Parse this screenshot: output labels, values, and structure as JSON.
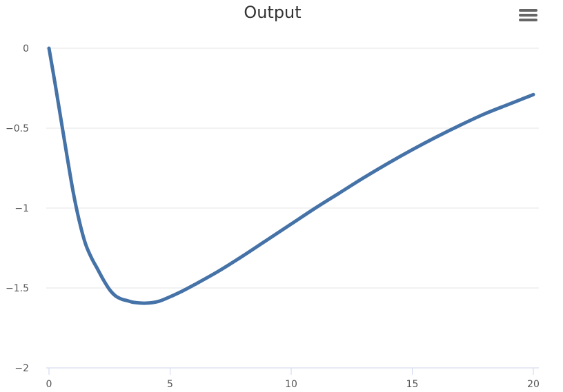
{
  "colors": {
    "series": "#4572a7",
    "menu_icon": "#666666"
  },
  "menu": {
    "icon": "hamburger-menu-icon"
  },
  "chart_data": {
    "type": "line",
    "title": "Output",
    "xlabel": "",
    "ylabel": "",
    "xlim": [
      0,
      20
    ],
    "ylim": [
      -2,
      0
    ],
    "x_ticks": [
      0,
      5,
      10,
      15,
      20
    ],
    "x_tick_labels": [
      "0",
      "5",
      "10",
      "15",
      "20"
    ],
    "y_ticks": [
      0,
      -0.5,
      -1,
      -1.5,
      -2
    ],
    "y_tick_labels": [
      "0",
      "−0.5",
      "−1",
      "−1.5",
      "−2"
    ],
    "grid": true,
    "legend": "none",
    "series": [
      {
        "color": "#4572a7",
        "points": [
          [
            0,
            0
          ],
          [
            0.25,
            -0.22
          ],
          [
            0.5,
            -0.45
          ],
          [
            0.75,
            -0.68
          ],
          [
            1.0,
            -0.9
          ],
          [
            1.25,
            -1.08
          ],
          [
            1.5,
            -1.22
          ],
          [
            1.75,
            -1.31
          ],
          [
            2.0,
            -1.38
          ],
          [
            2.25,
            -1.45
          ],
          [
            2.5,
            -1.51
          ],
          [
            2.75,
            -1.55
          ],
          [
            3.0,
            -1.57
          ],
          [
            3.25,
            -1.58
          ],
          [
            3.5,
            -1.59
          ],
          [
            4.0,
            -1.595
          ],
          [
            4.5,
            -1.585
          ],
          [
            5.0,
            -1.555
          ],
          [
            5.5,
            -1.52
          ],
          [
            6.0,
            -1.48
          ],
          [
            7.0,
            -1.395
          ],
          [
            8.0,
            -1.3
          ],
          [
            9.0,
            -1.2
          ],
          [
            10.0,
            -1.1
          ],
          [
            11.0,
            -1.0
          ],
          [
            12.0,
            -0.905
          ],
          [
            13.0,
            -0.81
          ],
          [
            14.0,
            -0.72
          ],
          [
            15.0,
            -0.635
          ],
          [
            16.0,
            -0.555
          ],
          [
            17.0,
            -0.48
          ],
          [
            18.0,
            -0.41
          ],
          [
            19.0,
            -0.35
          ],
          [
            20.0,
            -0.29
          ]
        ]
      }
    ]
  }
}
